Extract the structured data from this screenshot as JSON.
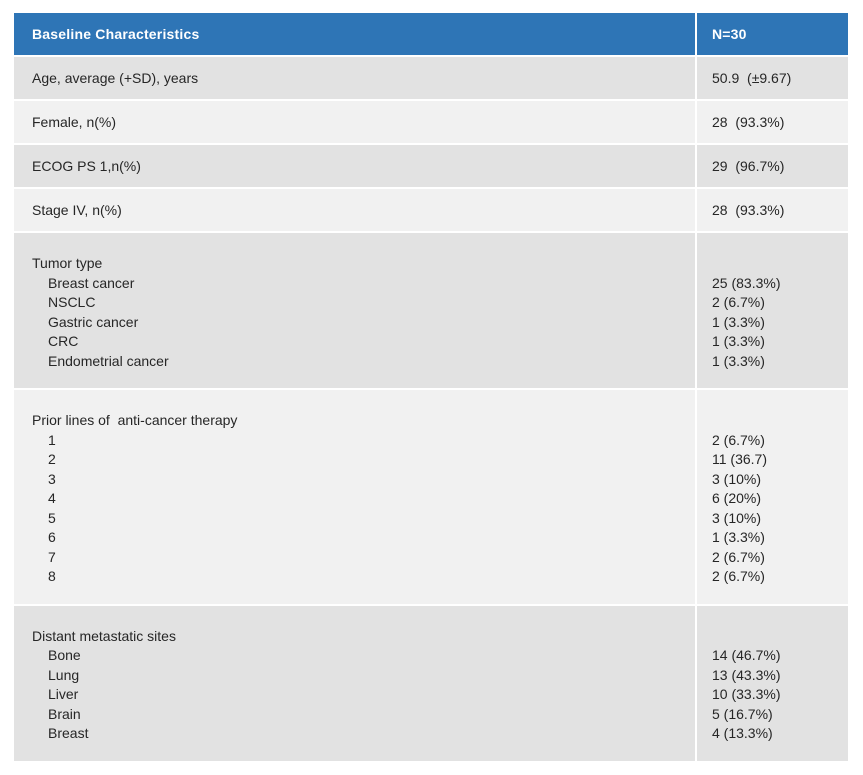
{
  "table": {
    "header": {
      "col1": "Baseline Characteristics",
      "col2": "N=30"
    },
    "colors": {
      "header_bg": "#2E75B6",
      "header_text": "#FFFFFF",
      "row_dark": "#E2E2E2",
      "row_light": "#F1F1F1",
      "body_text": "#262626"
    },
    "rows": [
      {
        "type": "simple",
        "shade": "dark",
        "label": "Age, average (+SD), years",
        "value": "50.9  (±9.67)"
      },
      {
        "type": "simple",
        "shade": "light",
        "label": "Female, n(%)",
        "value": "28  (93.3%)"
      },
      {
        "type": "simple",
        "shade": "dark",
        "label": "ECOG PS 1,n(%)",
        "value": "29  (96.7%)"
      },
      {
        "type": "simple",
        "shade": "light",
        "label": "Stage IV, n(%)",
        "value": "28  (93.3%)"
      },
      {
        "type": "group",
        "shade": "dark",
        "label": "Tumor type",
        "items": [
          {
            "label": "Breast cancer",
            "value": "25 (83.3%)"
          },
          {
            "label": "NSCLC",
            "value": "2 (6.7%)"
          },
          {
            "label": "Gastric cancer",
            "value": "1 (3.3%)"
          },
          {
            "label": "CRC",
            "value": "1 (3.3%)"
          },
          {
            "label": "Endometrial cancer",
            "value": "1 (3.3%)"
          }
        ]
      },
      {
        "type": "group",
        "shade": "light",
        "label": "Prior lines of  anti-cancer therapy",
        "items": [
          {
            "label": "1",
            "value": "2 (6.7%)"
          },
          {
            "label": "2",
            "value": "11 (36.7)"
          },
          {
            "label": "3",
            "value": "3 (10%)"
          },
          {
            "label": "4",
            "value": "6 (20%)"
          },
          {
            "label": "5",
            "value": "3 (10%)"
          },
          {
            "label": "6",
            "value": "1 (3.3%)"
          },
          {
            "label": "7",
            "value": "2 (6.7%)"
          },
          {
            "label": "8",
            "value": "2 (6.7%)"
          }
        ]
      },
      {
        "type": "group",
        "shade": "dark",
        "label": "Distant metastatic sites",
        "items": [
          {
            "label": "Bone",
            "value": "14 (46.7%)"
          },
          {
            "label": "Lung",
            "value": "13 (43.3%)"
          },
          {
            "label": "Liver",
            "value": "10 (33.3%)"
          },
          {
            "label": "Brain",
            "value": "5 (16.7%)"
          },
          {
            "label": "Breast",
            "value": "4 (13.3%)"
          }
        ]
      }
    ]
  }
}
